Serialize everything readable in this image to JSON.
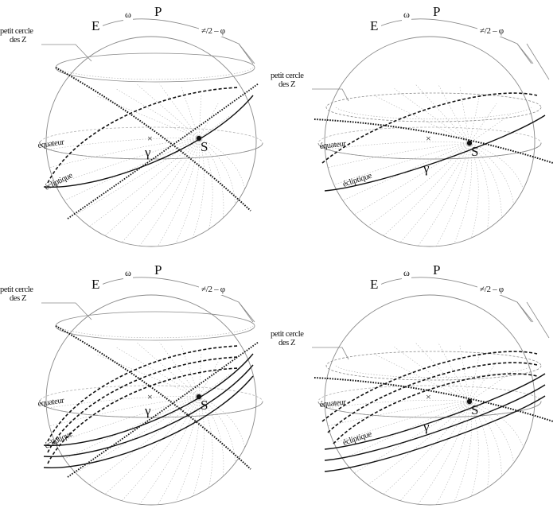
{
  "colors": {
    "ink": "#111111",
    "grey_line": "#8a8a8a",
    "light_grey": "#b5b5b5",
    "background": "#ffffff"
  },
  "panels": [
    {
      "id": "top-left",
      "labels": {
        "E": "E",
        "omega": "ω",
        "P": "P",
        "angle": "≠/2 – φ",
        "small_circle": [
          "petit cercle",
          "des Z"
        ],
        "equator": "équateur",
        "ecliptic": "écliptique",
        "gamma": "γ",
        "S": "S",
        "center_mark": "×"
      },
      "ecliptic_count": 1
    },
    {
      "id": "top-right",
      "labels": {
        "E": "E",
        "omega": "ω",
        "P": "P",
        "angle": "≠/2 – φ",
        "small_circle": [
          "petit cercle",
          "des Z"
        ],
        "equator": "équateur",
        "ecliptic": "écliptique",
        "gamma": "γ",
        "S": "S",
        "center_mark": "×"
      },
      "ecliptic_count": 1
    },
    {
      "id": "bottom-left",
      "labels": {
        "E": "E",
        "omega": "ω",
        "P": "P",
        "angle": "≠/2 – φ",
        "small_circle": [
          "petit cercle",
          "des Z"
        ],
        "equator": "équateur",
        "ecliptic": "écliptique",
        "gamma": "γ",
        "S": "S",
        "center_mark": "×"
      },
      "ecliptic_count": 3
    },
    {
      "id": "bottom-right",
      "labels": {
        "E": "E",
        "omega": "ω",
        "P": "P",
        "angle": "≠/2 – φ",
        "small_circle": [
          "petit cercle",
          "des Z"
        ],
        "equator": "équateur",
        "ecliptic": "écliptique",
        "gamma": "γ",
        "S": "S",
        "center_mark": "×"
      },
      "ecliptic_count": 3
    }
  ]
}
